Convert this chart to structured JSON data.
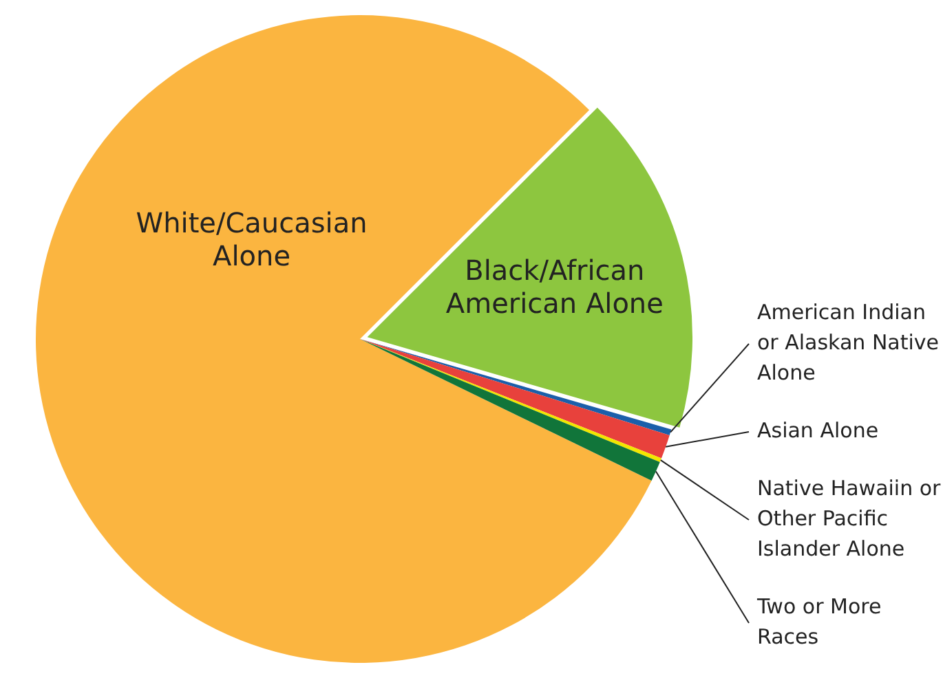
{
  "chart_data": {
    "type": "pie",
    "categories": [
      "White/Caucasian Alone",
      "Black/African American Alone",
      "American Indian or Alaskan Native Alone",
      "Asian Alone",
      "Native Hawaiin or Other Pacific Islander Alone",
      "Two or More Races"
    ],
    "values": [
      80.3,
      17,
      0.3,
      1.2,
      0.2,
      1.0
    ],
    "colors": [
      "#fbb540",
      "#8dc63f",
      "#1b5faa",
      "#e8413c",
      "#f2e600",
      "#11753a"
    ],
    "legend": false
  }
}
